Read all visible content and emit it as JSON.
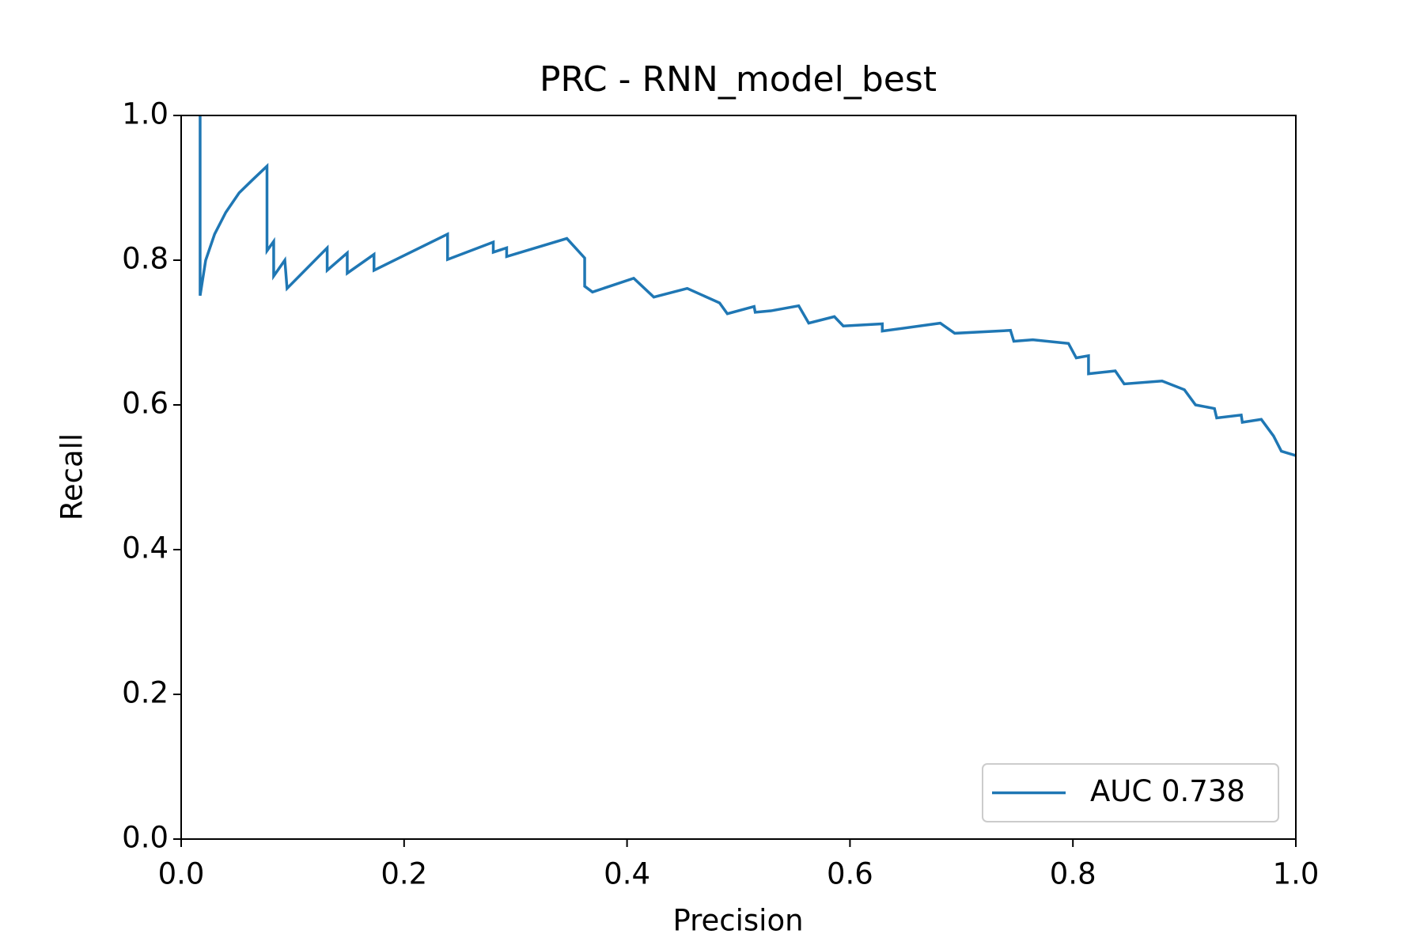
{
  "chart_data": {
    "type": "line",
    "title": "PRC - RNN_model_best",
    "xlabel": "Precision",
    "ylabel": "Recall",
    "x": [
      0.017,
      0.017,
      0.022,
      0.03,
      0.04,
      0.052,
      0.064,
      0.077,
      0.077,
      0.083,
      0.083,
      0.093,
      0.095,
      0.131,
      0.131,
      0.149,
      0.149,
      0.173,
      0.173,
      0.239,
      0.239,
      0.28,
      0.28,
      0.292,
      0.292,
      0.346,
      0.362,
      0.362,
      0.369,
      0.406,
      0.424,
      0.454,
      0.483,
      0.49,
      0.514,
      0.515,
      0.529,
      0.554,
      0.563,
      0.586,
      0.594,
      0.629,
      0.629,
      0.681,
      0.694,
      0.744,
      0.747,
      0.764,
      0.796,
      0.803,
      0.814,
      0.814,
      0.838,
      0.846,
      0.88,
      0.9,
      0.91,
      0.927,
      0.929,
      0.951,
      0.952,
      0.969,
      0.98,
      0.987,
      1.0
    ],
    "series": [
      {
        "name": "AUC 0.738",
        "color": "#1f77b4",
        "values": [
          1.0,
          0.751,
          0.8,
          0.836,
          0.866,
          0.893,
          0.911,
          0.93,
          0.813,
          0.826,
          0.778,
          0.8,
          0.761,
          0.817,
          0.786,
          0.81,
          0.782,
          0.808,
          0.786,
          0.836,
          0.801,
          0.825,
          0.811,
          0.817,
          0.805,
          0.83,
          0.803,
          0.764,
          0.756,
          0.775,
          0.749,
          0.761,
          0.741,
          0.726,
          0.736,
          0.728,
          0.73,
          0.737,
          0.713,
          0.722,
          0.709,
          0.712,
          0.702,
          0.713,
          0.699,
          0.703,
          0.688,
          0.69,
          0.685,
          0.665,
          0.668,
          0.643,
          0.647,
          0.629,
          0.633,
          0.621,
          0.6,
          0.595,
          0.582,
          0.586,
          0.576,
          0.58,
          0.557,
          0.536,
          0.53
        ]
      }
    ],
    "xlim": [
      0,
      1
    ],
    "ylim": [
      0,
      1
    ],
    "xticks": [
      {
        "value": 0,
        "label": "0.0"
      },
      0.2,
      0.4,
      0.6,
      0.8,
      {
        "value": 1,
        "label": "1.0"
      }
    ],
    "yticks": [
      {
        "value": 0,
        "label": "0.0"
      },
      0.2,
      0.4,
      0.6,
      0.8,
      {
        "value": 1,
        "label": "1.0"
      }
    ],
    "legend": "lower right"
  }
}
